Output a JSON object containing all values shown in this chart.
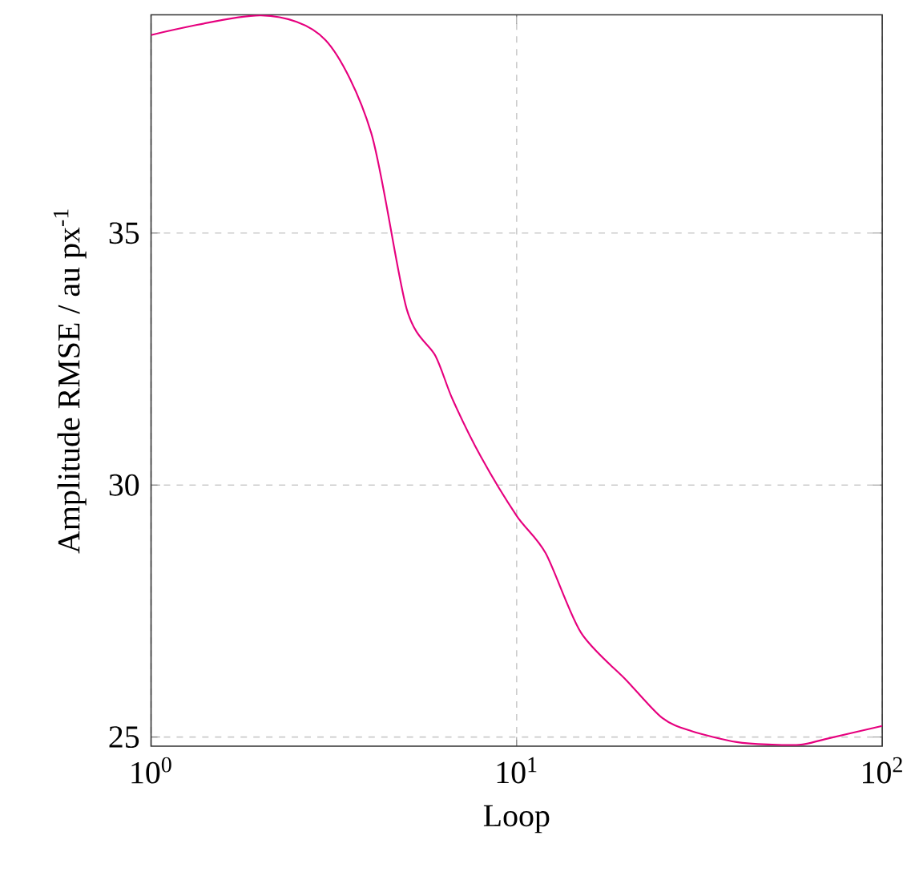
{
  "chart_data": {
    "type": "line",
    "xlabel": "Loop",
    "ylabel": "Amplitude RMSE / au px$^{-1}$",
    "log": "x",
    "grid": true,
    "xlim": [
      1,
      100
    ],
    "ylim": [
      24.82,
      39.33
    ],
    "xticks": [
      {
        "value": 1,
        "label": "10$^{0}$"
      },
      {
        "value": 10,
        "label": "10$^{1}$"
      },
      {
        "value": 100,
        "label": "10$^{2}$"
      }
    ],
    "yticks": [
      25,
      30,
      35
    ],
    "series": [
      {
        "color": "#e6007e",
        "x": [
          1,
          2,
          3,
          4,
          5,
          6,
          6.68,
          8,
          10,
          12,
          15,
          20,
          25,
          30,
          40,
          50,
          60,
          70,
          100
        ],
        "values": [
          38.93,
          39.32,
          38.83,
          36.99,
          33.5,
          32.56,
          31.7,
          30.55,
          29.39,
          28.65,
          27.07,
          26.12,
          25.38,
          25.12,
          24.9,
          24.85,
          24.85,
          24.96,
          25.22
        ]
      }
    ]
  }
}
